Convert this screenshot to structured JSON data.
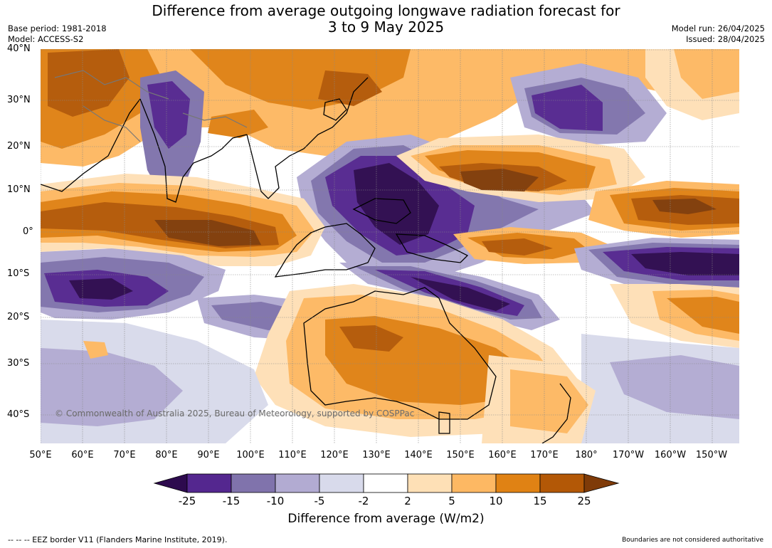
{
  "title": {
    "line1": "Difference from average outgoing longwave radiation forecast for",
    "line2": "3 to 9 May 2025"
  },
  "meta_left": [
    "Base period: 1981-2018",
    "Model: ACCESS-S2"
  ],
  "meta_right": [
    "Model run: 26/04/2025",
    "Issued: 28/04/2025"
  ],
  "lat_labels": [
    "40°N",
    "30°N",
    "20°N",
    "10°N",
    "0°",
    "10°S",
    "20°S",
    "30°S",
    "40°S"
  ],
  "lon_labels": [
    "50°E",
    "60°E",
    "70°E",
    "80°E",
    "90°E",
    "100°E",
    "110°E",
    "120°E",
    "130°E",
    "140°E",
    "150°E",
    "160°E",
    "170°E",
    "180°",
    "170°W",
    "160°W",
    "150°W"
  ],
  "copyright": "© Commonwealth of Australia 2025, Bureau of Meteorology, supported by COSPPac",
  "colorbar": {
    "ticks": [
      "-25",
      "-15",
      "-10",
      "-5",
      "-2",
      "2",
      "5",
      "10",
      "15",
      "25"
    ],
    "colors": [
      "#2d0a4e",
      "#54278f",
      "#8073ac",
      "#b2abd2",
      "#d8daeb",
      "#ffffff",
      "#fee0b6",
      "#fdb863",
      "#e08214",
      "#b35806",
      "#7f3b08"
    ],
    "label": "Difference from average (W/m2)"
  },
  "footer": {
    "eez": "--  --  -- EEZ border V11 (Flanders Marine Institute, 2019).",
    "disclaimer": "Boundaries are not considered authoritative"
  }
}
